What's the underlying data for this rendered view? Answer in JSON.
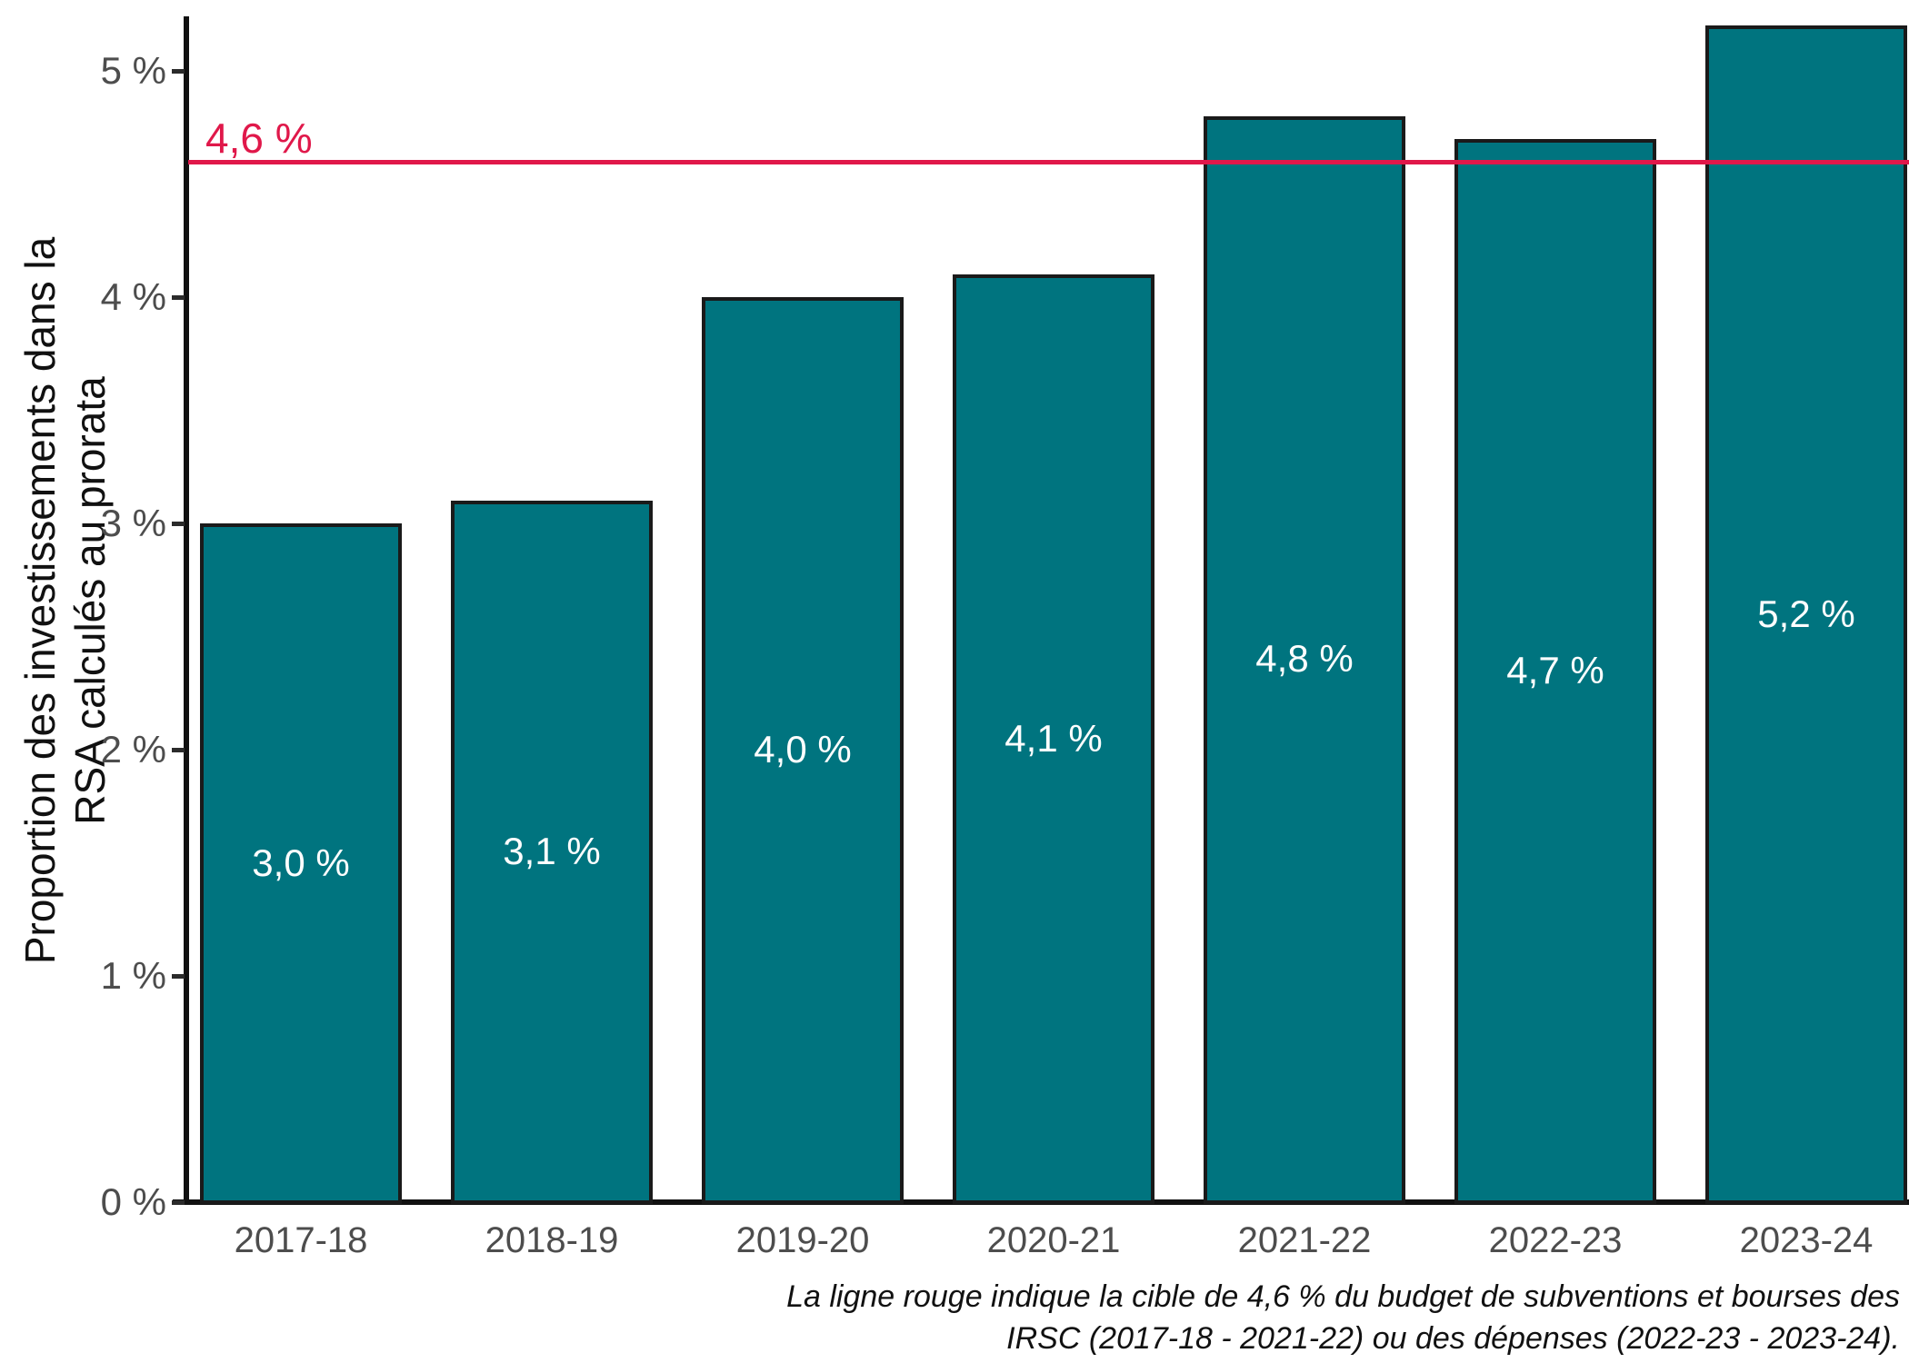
{
  "chart": {
    "y_axis_title_line1": "Proportion des investissements dans la",
    "y_axis_title_line2": "RSA calculés au prorata",
    "target_label": "4,6 %",
    "caption_line1": "La ligne rouge indique la cible de 4,6 % du budget de subventions et bourses des",
    "caption_line2": "IRSC (2017-18 - 2021-22) ou des dépenses (2022-23 - 2023-24)."
  },
  "chart_data": {
    "type": "bar",
    "categories": [
      "2017-18",
      "2018-19",
      "2019-20",
      "2020-21",
      "2021-22",
      "2022-23",
      "2023-24"
    ],
    "values": [
      3.0,
      3.1,
      4.0,
      4.1,
      4.8,
      4.7,
      5.2
    ],
    "bar_value_labels": [
      "3,0 %",
      "3,1 %",
      "4,0 %",
      "4,1 %",
      "4,8 %",
      "4,7 %",
      "5,2 %"
    ],
    "title": "",
    "xlabel": "",
    "ylabel": "Proportion des investissements dans la RSA calculés au prorata",
    "y_ticks": [
      {
        "value": 0,
        "label": "0 %"
      },
      {
        "value": 1,
        "label": "1 %"
      },
      {
        "value": 2,
        "label": "2 %"
      },
      {
        "value": 3,
        "label": "3 %"
      },
      {
        "value": 4,
        "label": "4 %"
      },
      {
        "value": 5,
        "label": "5 %"
      }
    ],
    "ylim": [
      0,
      5.25
    ],
    "grid": false,
    "legend": false,
    "bar_fill_color": "#00747f",
    "bar_border_color": "#1a1a1a",
    "axis_text_color": "#4d4d4d",
    "target_line": {
      "value": 4.6,
      "label": "4,6 %",
      "color": "#e0184a"
    },
    "caption": "La ligne rouge indique la cible de 4,6 % du budget de subventions et bourses des IRSC (2017-18 - 2021-22) ou des dépenses (2022-23 - 2023-24)."
  }
}
